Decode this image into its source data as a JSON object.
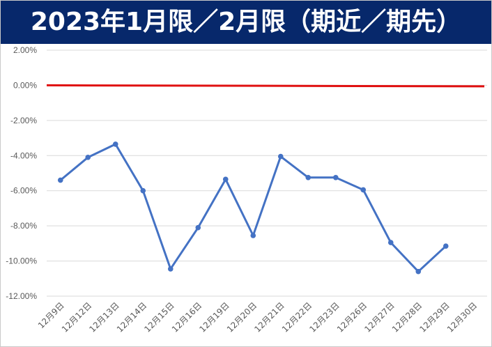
{
  "chart_data": {
    "type": "line",
    "title": "2023年1月限／2月限（期近／期先）",
    "xlabel": "",
    "ylabel": "",
    "categories": [
      "12月9日",
      "12月12日",
      "12月13日",
      "12月14日",
      "12月15日",
      "12月16日",
      "12月19日",
      "12月20日",
      "12月21日",
      "12月22日",
      "12月23日",
      "12月26日",
      "12月27日",
      "12月28日",
      "12月29日",
      "12月30日"
    ],
    "yticks": [
      "2.00%",
      "0.00%",
      "-2.00%",
      "-4.00%",
      "-6.00%",
      "-8.00%",
      "-10.00%",
      "-12.00%"
    ],
    "ylim": [
      -12,
      2
    ],
    "grid": true,
    "series": [
      {
        "values": [
          -5.4,
          -4.1,
          -3.35,
          -6.0,
          -10.45,
          -8.1,
          -5.35,
          -8.55,
          -4.05,
          -5.25,
          -5.25,
          -5.95,
          -8.95,
          -10.6,
          -9.15,
          null
        ],
        "color": "#4472c4"
      }
    ],
    "reference_line": {
      "y": 0,
      "color": "#e01010"
    }
  }
}
